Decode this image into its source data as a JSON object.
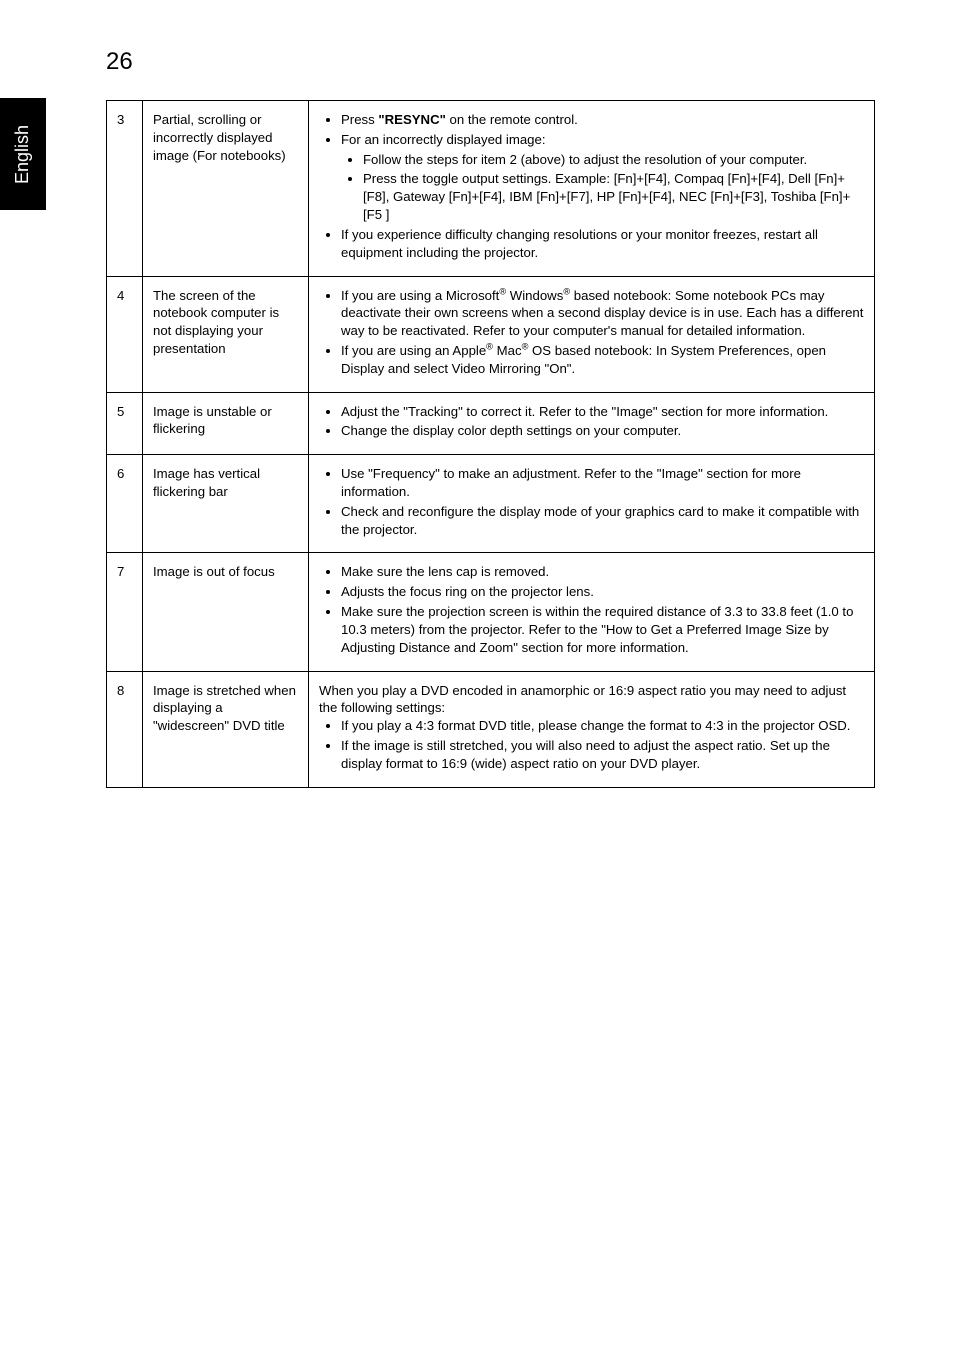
{
  "page_number": "26",
  "side_tab": "English",
  "rows": [
    {
      "num": "3",
      "problem": "Partial, scrolling or incorrectly displayed image (For notebooks)",
      "sol_html": "<ul><li>Press <span class=\"bold\">\"RESYNC\"</span> on the remote control.</li><li>For an incorrectly displayed image:<ul><li>Follow the steps for item 2 (above) to adjust the resolution of your computer.</li><li>Press the toggle output settings. Example: [Fn]+[F4], Compaq [Fn]+[F4], Dell [Fn]+[F8], Gateway [Fn]+[F4], IBM [Fn]+[F7], HP [Fn]+[F4], NEC [Fn]+[F3], Toshiba [Fn]+[F5 ]</li></ul></li><li>If you experience difficulty changing resolutions or your monitor freezes, restart all equipment including the projector.</li></ul>"
    },
    {
      "num": "4",
      "problem": "The screen of the notebook computer is not displaying your presentation",
      "sol_html": "<ul><li>If you are using a Microsoft<sup>®</sup> Windows<sup>®</sup> based notebook: Some notebook PCs may deactivate their own screens when a second display device is in use. Each has a different way to be reactivated. Refer to your computer's manual for detailed information.</li><li>If you are using an Apple<sup>®</sup> Mac<sup>®</sup> OS based notebook: In System Preferences, open Display and select Video Mirroring \"On\".</li></ul>"
    },
    {
      "num": "5",
      "problem": "Image is unstable or flickering",
      "sol_html": "<ul><li>Adjust the \"Tracking\" to correct it. Refer to the \"Image\" section for more information.</li><li>Change the display color depth settings on your computer.</li></ul>"
    },
    {
      "num": "6",
      "problem": "Image has vertical flickering bar",
      "sol_html": "<ul><li>Use \"Frequency\" to make an adjustment. Refer to the \"Image\" section for more information.</li><li>Check and reconfigure the display mode of your graphics card to make it compatible with the projector.</li></ul>"
    },
    {
      "num": "7",
      "problem": "Image is out of focus",
      "sol_html": "<ul><li>Make sure the lens cap is removed.</li><li>Adjusts the focus ring on the projector lens.</li><li>Make sure the projection screen is within the required distance of 3.3 to 33.8 feet (1.0 to 10.3 meters) from the projector. Refer to the \"How to Get a Preferred Image Size by Adjusting Distance and Zoom\" section for more information.</li></ul>"
    },
    {
      "num": "8",
      "problem": "Image is stretched when displaying a \"widescreen\" DVD title",
      "sol_html": "When you play a DVD encoded in anamorphic or 16:9 aspect ratio you may need to adjust the following settings:<ul><li>If you play a 4:3 format DVD title, please change the format to 4:3 in the projector OSD.</li><li>If the image is still stretched, you will also need to adjust the aspect ratio. Set up the display format to 16:9 (wide) aspect ratio on your DVD player.</li></ul>"
    }
  ]
}
